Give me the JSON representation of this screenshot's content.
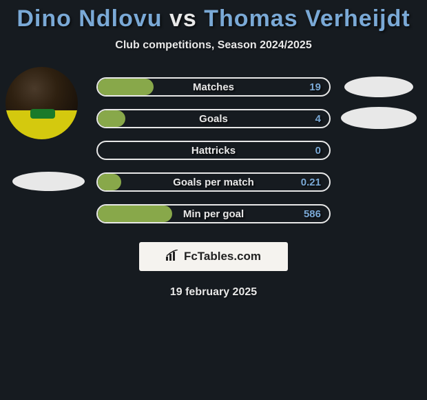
{
  "title": {
    "player1": "Dino Ndlovu",
    "vs": "vs",
    "player2": "Thomas Verheijdt"
  },
  "subtitle": "Club competitions, Season 2024/2025",
  "colors": {
    "player1": "#7aa9d6",
    "player2": "#7aa9d6",
    "bar_fill": "#88a84a",
    "bar_border": "#e8e8e8",
    "background": "#161b20"
  },
  "stats": [
    {
      "label": "Matches",
      "value_left": "19",
      "fill_pct": 24,
      "show_avatar": true,
      "show_blob_right": true,
      "show_blob_left": false
    },
    {
      "label": "Goals",
      "value_left": "4",
      "fill_pct": 12,
      "show_avatar": false,
      "show_blob_right": true,
      "show_blob_left": false
    },
    {
      "label": "Hattricks",
      "value_left": "0",
      "fill_pct": 0,
      "show_avatar": false,
      "show_blob_right": false,
      "show_blob_left": false
    },
    {
      "label": "Goals per match",
      "value_left": "0.21",
      "fill_pct": 10,
      "show_avatar": false,
      "show_blob_right": false,
      "show_blob_left": true
    },
    {
      "label": "Min per goal",
      "value_left": "586",
      "fill_pct": 32,
      "show_avatar": false,
      "show_blob_right": false,
      "show_blob_left": false
    }
  ],
  "brand": "FcTables.com",
  "date": "19 february 2025"
}
